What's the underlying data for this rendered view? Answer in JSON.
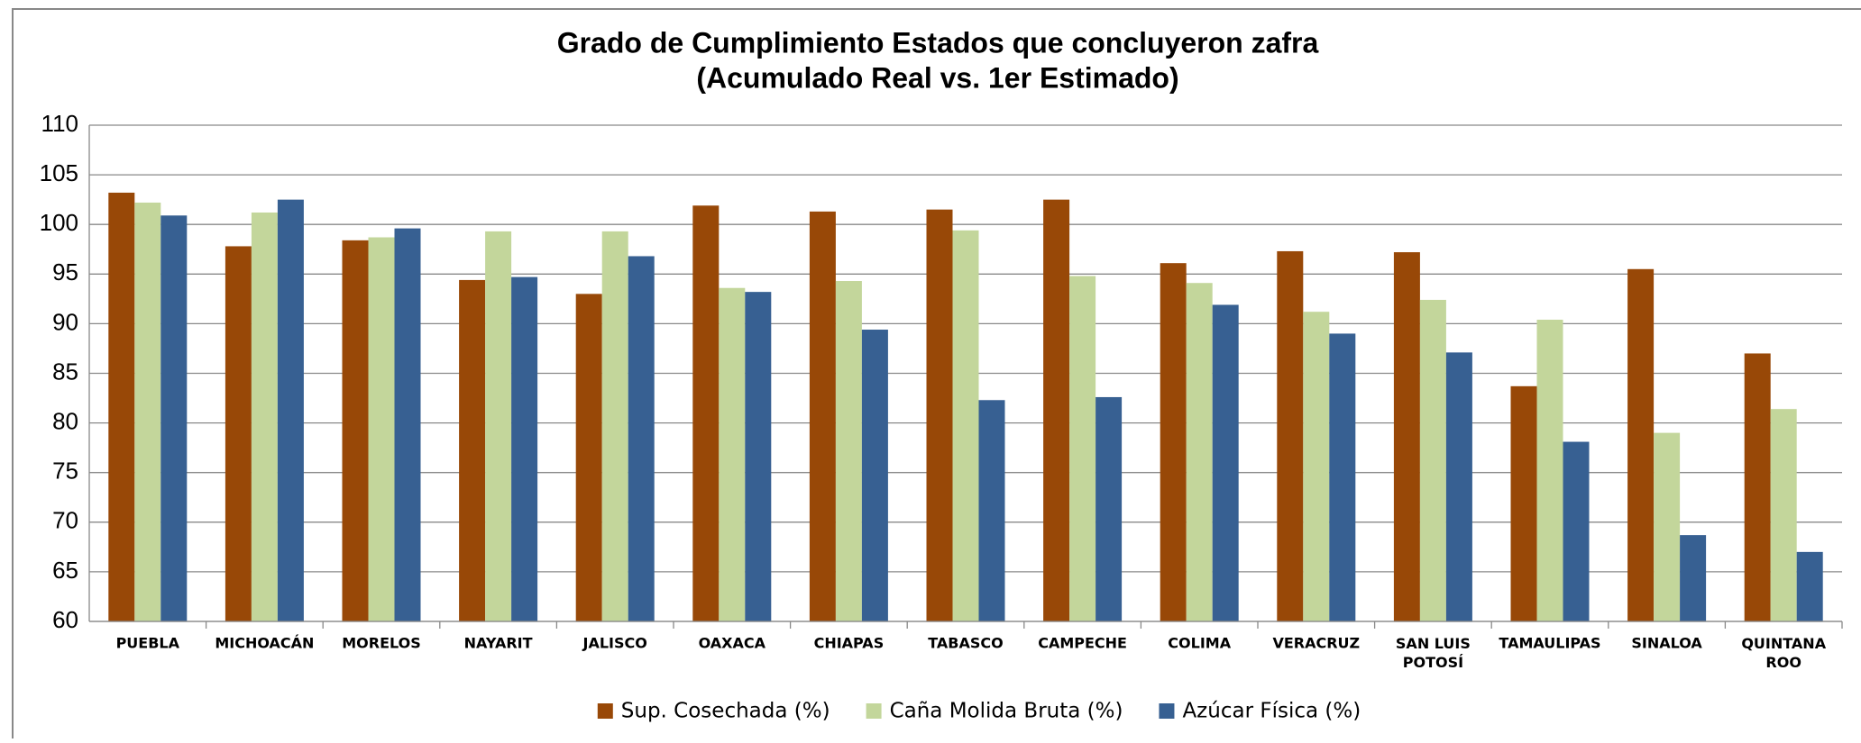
{
  "chart_data": {
    "type": "bar",
    "title": "Grado de Cumplimiento Estados que concluyeron zafra",
    "subtitle": "(Acumulado Real vs. 1er Estimado)",
    "categories": [
      "PUEBLA",
      "MICHOACÁN",
      "MORELOS",
      "NAYARIT",
      "JALISCO",
      "OAXACA",
      "CHIAPAS",
      "TABASCO",
      "CAMPECHE",
      "COLIMA",
      "VERACRUZ",
      "SAN LUIS POTOSÍ",
      "TAMAULIPAS",
      "SINALOA",
      "QUINTANA ROO"
    ],
    "series": [
      {
        "name": "Sup. Cosechada (%)",
        "color": "#984807",
        "values": [
          103.2,
          97.8,
          98.4,
          94.4,
          93.0,
          101.9,
          101.3,
          101.5,
          102.5,
          96.1,
          97.3,
          97.2,
          83.7,
          95.5,
          87.0
        ]
      },
      {
        "name": "Caña Molida Bruta (%)",
        "color": "#c3d69b",
        "values": [
          102.2,
          101.2,
          98.7,
          99.3,
          99.3,
          93.6,
          94.3,
          99.4,
          94.8,
          94.1,
          91.2,
          92.4,
          90.4,
          79.0,
          81.4
        ]
      },
      {
        "name": "Azúcar Física (%)",
        "color": "#376092",
        "values": [
          100.9,
          102.5,
          99.6,
          94.7,
          96.8,
          93.2,
          89.4,
          82.3,
          82.6,
          91.9,
          89.0,
          87.1,
          78.1,
          68.7,
          67.0
        ]
      }
    ],
    "ylim": [
      60,
      110
    ],
    "yticks": [
      60,
      65,
      70,
      75,
      80,
      85,
      90,
      95,
      100,
      105,
      110
    ],
    "grid": true,
    "legend": "bottom"
  }
}
